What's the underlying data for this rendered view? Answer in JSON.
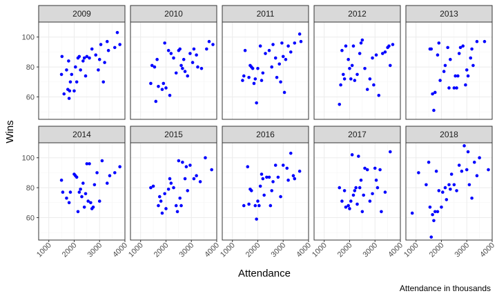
{
  "chart_data": {
    "type": "scatter",
    "xlabel": "Attendance",
    "ylabel": "Wins",
    "caption": "Attendance in thousands",
    "xlim": [
      600,
      4000
    ],
    "ylim": [
      45,
      110
    ],
    "x_ticks": [
      1000,
      2000,
      3000,
      4000
    ],
    "y_ticks": [
      60,
      80,
      100
    ],
    "point_color": "#0000ff",
    "grid": true,
    "panels": [
      {
        "label": "2009",
        "points": [
          [
            1500,
            75
          ],
          [
            1520,
            87
          ],
          [
            1600,
            62
          ],
          [
            1700,
            78
          ],
          [
            1750,
            65
          ],
          [
            1780,
            84
          ],
          [
            1800,
            59
          ],
          [
            1820,
            64
          ],
          [
            1850,
            70
          ],
          [
            1900,
            75
          ],
          [
            2000,
            64
          ],
          [
            2050,
            80
          ],
          [
            2100,
            70
          ],
          [
            2150,
            86
          ],
          [
            2200,
            87
          ],
          [
            2250,
            78
          ],
          [
            2350,
            84
          ],
          [
            2400,
            86
          ],
          [
            2450,
            74
          ],
          [
            2500,
            87
          ],
          [
            2600,
            86
          ],
          [
            2700,
            92
          ],
          [
            2850,
            88
          ],
          [
            2950,
            78
          ],
          [
            3000,
            85
          ],
          [
            3050,
            95
          ],
          [
            3150,
            70
          ],
          [
            3200,
            83
          ],
          [
            3300,
            97
          ],
          [
            3350,
            91
          ],
          [
            3600,
            93
          ],
          [
            3700,
            103
          ],
          [
            3800,
            95
          ]
        ]
      },
      {
        "label": "2010",
        "points": [
          [
            1400,
            69
          ],
          [
            1450,
            81
          ],
          [
            1550,
            80
          ],
          [
            1600,
            57
          ],
          [
            1650,
            85
          ],
          [
            1700,
            67
          ],
          [
            1850,
            65
          ],
          [
            1900,
            69
          ],
          [
            1950,
            96
          ],
          [
            2000,
            66
          ],
          [
            2100,
            91
          ],
          [
            2150,
            61
          ],
          [
            2200,
            89
          ],
          [
            2300,
            86
          ],
          [
            2400,
            76
          ],
          [
            2500,
            91
          ],
          [
            2550,
            92
          ],
          [
            2600,
            81
          ],
          [
            2650,
            79
          ],
          [
            2700,
            85
          ],
          [
            2750,
            77
          ],
          [
            2850,
            74
          ],
          [
            2950,
            89
          ],
          [
            3050,
            83
          ],
          [
            3100,
            92
          ],
          [
            3200,
            88
          ],
          [
            3250,
            80
          ],
          [
            3400,
            79
          ],
          [
            3600,
            92
          ],
          [
            3700,
            97
          ],
          [
            3850,
            95
          ]
        ]
      },
      {
        "label": "2011",
        "points": [
          [
            1400,
            71
          ],
          [
            1450,
            74
          ],
          [
            1500,
            91
          ],
          [
            1650,
            73
          ],
          [
            1700,
            81
          ],
          [
            1750,
            80
          ],
          [
            1800,
            79
          ],
          [
            1850,
            69
          ],
          [
            1900,
            72
          ],
          [
            1950,
            56
          ],
          [
            2000,
            79
          ],
          [
            2100,
            94
          ],
          [
            2150,
            71
          ],
          [
            2200,
            76
          ],
          [
            2300,
            89
          ],
          [
            2450,
            91
          ],
          [
            2550,
            80
          ],
          [
            2600,
            95
          ],
          [
            2700,
            86
          ],
          [
            2750,
            73
          ],
          [
            2850,
            82
          ],
          [
            2900,
            70
          ],
          [
            2950,
            96
          ],
          [
            3000,
            87
          ],
          [
            3050,
            63
          ],
          [
            3100,
            85
          ],
          [
            3200,
            94
          ],
          [
            3300,
            90
          ],
          [
            3450,
            96
          ],
          [
            3650,
            102
          ],
          [
            3700,
            97
          ]
        ]
      },
      {
        "label": "2012",
        "points": [
          [
            1600,
            55
          ],
          [
            1650,
            68
          ],
          [
            1700,
            91
          ],
          [
            1750,
            75
          ],
          [
            1800,
            72
          ],
          [
            1850,
            94
          ],
          [
            1950,
            85
          ],
          [
            2000,
            79
          ],
          [
            2050,
            72
          ],
          [
            2100,
            81
          ],
          [
            2150,
            94
          ],
          [
            2200,
            71
          ],
          [
            2300,
            75
          ],
          [
            2400,
            89
          ],
          [
            2450,
            96
          ],
          [
            2500,
            98
          ],
          [
            2600,
            79
          ],
          [
            2700,
            65
          ],
          [
            2800,
            72
          ],
          [
            2900,
            86
          ],
          [
            2950,
            68
          ],
          [
            3050,
            88
          ],
          [
            3150,
            61
          ],
          [
            3300,
            89
          ],
          [
            3400,
            90
          ],
          [
            3500,
            93
          ],
          [
            3550,
            94
          ],
          [
            3600,
            81
          ],
          [
            3700,
            95
          ]
        ]
      },
      {
        "label": "2013",
        "points": [
          [
            1550,
            92
          ],
          [
            1600,
            92
          ],
          [
            1650,
            62
          ],
          [
            1700,
            51
          ],
          [
            1750,
            63
          ],
          [
            1850,
            88
          ],
          [
            1900,
            96
          ],
          [
            1950,
            71
          ],
          [
            2100,
            77
          ],
          [
            2150,
            81
          ],
          [
            2250,
            93
          ],
          [
            2300,
            66
          ],
          [
            2350,
            85
          ],
          [
            2500,
            66
          ],
          [
            2550,
            74
          ],
          [
            2600,
            66
          ],
          [
            2650,
            74
          ],
          [
            2700,
            89
          ],
          [
            2750,
            93
          ],
          [
            2850,
            94
          ],
          [
            2950,
            68
          ],
          [
            3000,
            78
          ],
          [
            3050,
            74
          ],
          [
            3150,
            86
          ],
          [
            3200,
            92
          ],
          [
            3250,
            81
          ],
          [
            3400,
            97
          ],
          [
            3700,
            97
          ]
        ]
      },
      {
        "label": "2014",
        "points": [
          [
            1500,
            85
          ],
          [
            1550,
            77
          ],
          [
            1700,
            73
          ],
          [
            1800,
            70
          ],
          [
            1850,
            77
          ],
          [
            2000,
            89
          ],
          [
            2050,
            88
          ],
          [
            2100,
            87
          ],
          [
            2150,
            64
          ],
          [
            2200,
            77
          ],
          [
            2250,
            79
          ],
          [
            2300,
            74
          ],
          [
            2350,
            83
          ],
          [
            2400,
            67
          ],
          [
            2450,
            76
          ],
          [
            2500,
            96
          ],
          [
            2550,
            71
          ],
          [
            2600,
            96
          ],
          [
            2650,
            70
          ],
          [
            2700,
            66
          ],
          [
            2750,
            67
          ],
          [
            2800,
            82
          ],
          [
            2900,
            90
          ],
          [
            3000,
            71
          ],
          [
            3100,
            98
          ],
          [
            3300,
            83
          ],
          [
            3400,
            88
          ],
          [
            3600,
            90
          ],
          [
            3800,
            94
          ]
        ]
      },
      {
        "label": "2015",
        "points": [
          [
            1400,
            80
          ],
          [
            1500,
            81
          ],
          [
            1700,
            68
          ],
          [
            1750,
            74
          ],
          [
            1800,
            71
          ],
          [
            1850,
            63
          ],
          [
            1950,
            76
          ],
          [
            2000,
            66
          ],
          [
            2100,
            79
          ],
          [
            2150,
            86
          ],
          [
            2200,
            83
          ],
          [
            2300,
            80
          ],
          [
            2400,
            68
          ],
          [
            2450,
            64
          ],
          [
            2500,
            98
          ],
          [
            2550,
            73
          ],
          [
            2600,
            68
          ],
          [
            2650,
            97
          ],
          [
            2750,
            86
          ],
          [
            2800,
            94
          ],
          [
            2850,
            78
          ],
          [
            2950,
            95
          ],
          [
            3100,
            86
          ],
          [
            3200,
            88
          ],
          [
            3350,
            84
          ],
          [
            3550,
            100
          ],
          [
            3800,
            92
          ]
        ]
      },
      {
        "label": "2016",
        "points": [
          [
            1450,
            68
          ],
          [
            1600,
            94
          ],
          [
            1650,
            69
          ],
          [
            1700,
            79
          ],
          [
            1750,
            78
          ],
          [
            1900,
            68
          ],
          [
            1950,
            59
          ],
          [
            2000,
            71
          ],
          [
            2050,
            68
          ],
          [
            2100,
            81
          ],
          [
            2150,
            89
          ],
          [
            2200,
            86
          ],
          [
            2250,
            75
          ],
          [
            2350,
            87
          ],
          [
            2450,
            87
          ],
          [
            2500,
            68
          ],
          [
            2550,
            78
          ],
          [
            2600,
            84
          ],
          [
            2700,
            95
          ],
          [
            2800,
            87
          ],
          [
            2900,
            74
          ],
          [
            3000,
            95
          ],
          [
            3150,
            93
          ],
          [
            3200,
            85
          ],
          [
            3300,
            103
          ],
          [
            3400,
            88
          ],
          [
            3450,
            86
          ],
          [
            3650,
            91
          ]
        ]
      },
      {
        "label": "2017",
        "points": [
          [
            1600,
            80
          ],
          [
            1700,
            71
          ],
          [
            1800,
            78
          ],
          [
            1850,
            67
          ],
          [
            1950,
            68
          ],
          [
            2000,
            66
          ],
          [
            2050,
            71
          ],
          [
            2100,
            102
          ],
          [
            2150,
            75
          ],
          [
            2200,
            78
          ],
          [
            2250,
            80
          ],
          [
            2300,
            69
          ],
          [
            2350,
            101
          ],
          [
            2400,
            80
          ],
          [
            2450,
            85
          ],
          [
            2500,
            64
          ],
          [
            2550,
            75
          ],
          [
            2600,
            93
          ],
          [
            2700,
            92
          ],
          [
            2800,
            71
          ],
          [
            2900,
            76
          ],
          [
            3000,
            93
          ],
          [
            3050,
            85
          ],
          [
            3100,
            80
          ],
          [
            3200,
            92
          ],
          [
            3250,
            64
          ],
          [
            3400,
            77
          ],
          [
            3600,
            104
          ]
        ]
      },
      {
        "label": "2018",
        "points": [
          [
            850,
            63
          ],
          [
            1100,
            90
          ],
          [
            1400,
            82
          ],
          [
            1500,
            97
          ],
          [
            1550,
            67
          ],
          [
            1600,
            47
          ],
          [
            1650,
            62
          ],
          [
            1700,
            58
          ],
          [
            1750,
            64
          ],
          [
            1800,
            91
          ],
          [
            1850,
            64
          ],
          [
            1900,
            78
          ],
          [
            2000,
            67
          ],
          [
            2050,
            77
          ],
          [
            2150,
            80
          ],
          [
            2200,
            72
          ],
          [
            2300,
            82
          ],
          [
            2350,
            79
          ],
          [
            2400,
            89
          ],
          [
            2500,
            82
          ],
          [
            2600,
            78
          ],
          [
            2700,
            95
          ],
          [
            2800,
            91
          ],
          [
            2900,
            108
          ],
          [
            3000,
            92
          ],
          [
            3050,
            104
          ],
          [
            3100,
            82
          ],
          [
            3200,
            73
          ],
          [
            3300,
            97
          ],
          [
            3400,
            88
          ],
          [
            3500,
            100
          ],
          [
            3850,
            92
          ]
        ]
      }
    ]
  }
}
